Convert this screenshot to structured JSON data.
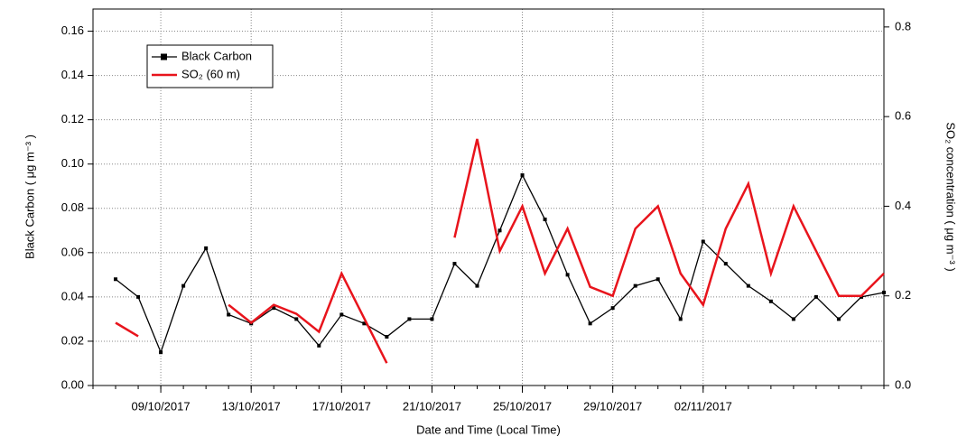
{
  "chart_data": {
    "type": "line",
    "x_label": "Date and Time (Local Time)",
    "y_label": "Black Carbon ( μg m⁻³ )",
    "y2_label": "SO₂ concentration ( μg m⁻³ )",
    "x": [
      "07/10/2017",
      "08/10/2017",
      "09/10/2017",
      "10/10/2017",
      "11/10/2017",
      "12/10/2017",
      "13/10/2017",
      "14/10/2017",
      "15/10/2017",
      "16/10/2017",
      "17/10/2017",
      "18/10/2017",
      "19/10/2017",
      "20/10/2017",
      "21/10/2017",
      "22/10/2017",
      "23/10/2017",
      "24/10/2017",
      "25/10/2017",
      "26/10/2017",
      "27/10/2017",
      "28/10/2017",
      "29/10/2017",
      "30/10/2017",
      "31/10/2017",
      "01/11/2017",
      "02/11/2017",
      "03/11/2017",
      "04/11/2017",
      "05/11/2017",
      "06/11/2017",
      "07/11/2017",
      "08/11/2017",
      "09/11/2017",
      "10/11/2017"
    ],
    "series": [
      {
        "name": "Black Carbon",
        "color": "#000000",
        "marker": "square",
        "axis": "y",
        "values": [
          0.048,
          0.04,
          0.015,
          0.045,
          0.062,
          0.032,
          0.028,
          0.035,
          0.03,
          0.018,
          0.032,
          0.028,
          0.022,
          0.03,
          0.03,
          0.055,
          0.045,
          0.07,
          0.095,
          0.075,
          0.05,
          0.028,
          0.035,
          0.045,
          0.048,
          0.03,
          0.065,
          0.055,
          0.045,
          0.038,
          0.03,
          0.04,
          0.03,
          0.04,
          0.042
        ]
      },
      {
        "name": "SO₂ (60 m)",
        "color": "#e8141c",
        "axis": "y2",
        "values": [
          0.14,
          0.11,
          null,
          null,
          null,
          0.18,
          0.14,
          0.18,
          0.16,
          0.12,
          0.25,
          0.15,
          0.05,
          null,
          null,
          0.33,
          0.55,
          0.3,
          0.4,
          0.25,
          0.35,
          0.22,
          0.2,
          0.35,
          0.4,
          0.25,
          0.18,
          0.35,
          0.45,
          0.25,
          0.4,
          0.3,
          0.2,
          0.2,
          0.25
        ]
      }
    ],
    "xlim": [
      "06/10/2017",
      "10/11/2017"
    ],
    "xticks": [
      "09/10/2017",
      "13/10/2017",
      "17/10/2017",
      "21/10/2017",
      "25/10/2017",
      "29/10/2017",
      "02/11/2017"
    ],
    "ylim": [
      0,
      0.17
    ],
    "yticks": [
      {
        "value": 0,
        "label": "0.00"
      },
      {
        "value": 0.02,
        "label": "0.02"
      },
      {
        "value": 0.04,
        "label": "0.04"
      },
      {
        "value": 0.06,
        "label": "0.06"
      },
      {
        "value": 0.08,
        "label": "0.08"
      },
      {
        "value": 0.1,
        "label": "0.10"
      },
      {
        "value": 0.12,
        "label": "0.12"
      },
      {
        "value": 0.14,
        "label": "0.14"
      },
      {
        "value": 0.16,
        "label": "0.16"
      }
    ],
    "y2lim": [
      0,
      0.84
    ],
    "y2ticks": [
      {
        "value": 0,
        "label": "0.0"
      },
      0.2,
      0.4,
      0.6,
      0.8
    ],
    "grid": true
  }
}
